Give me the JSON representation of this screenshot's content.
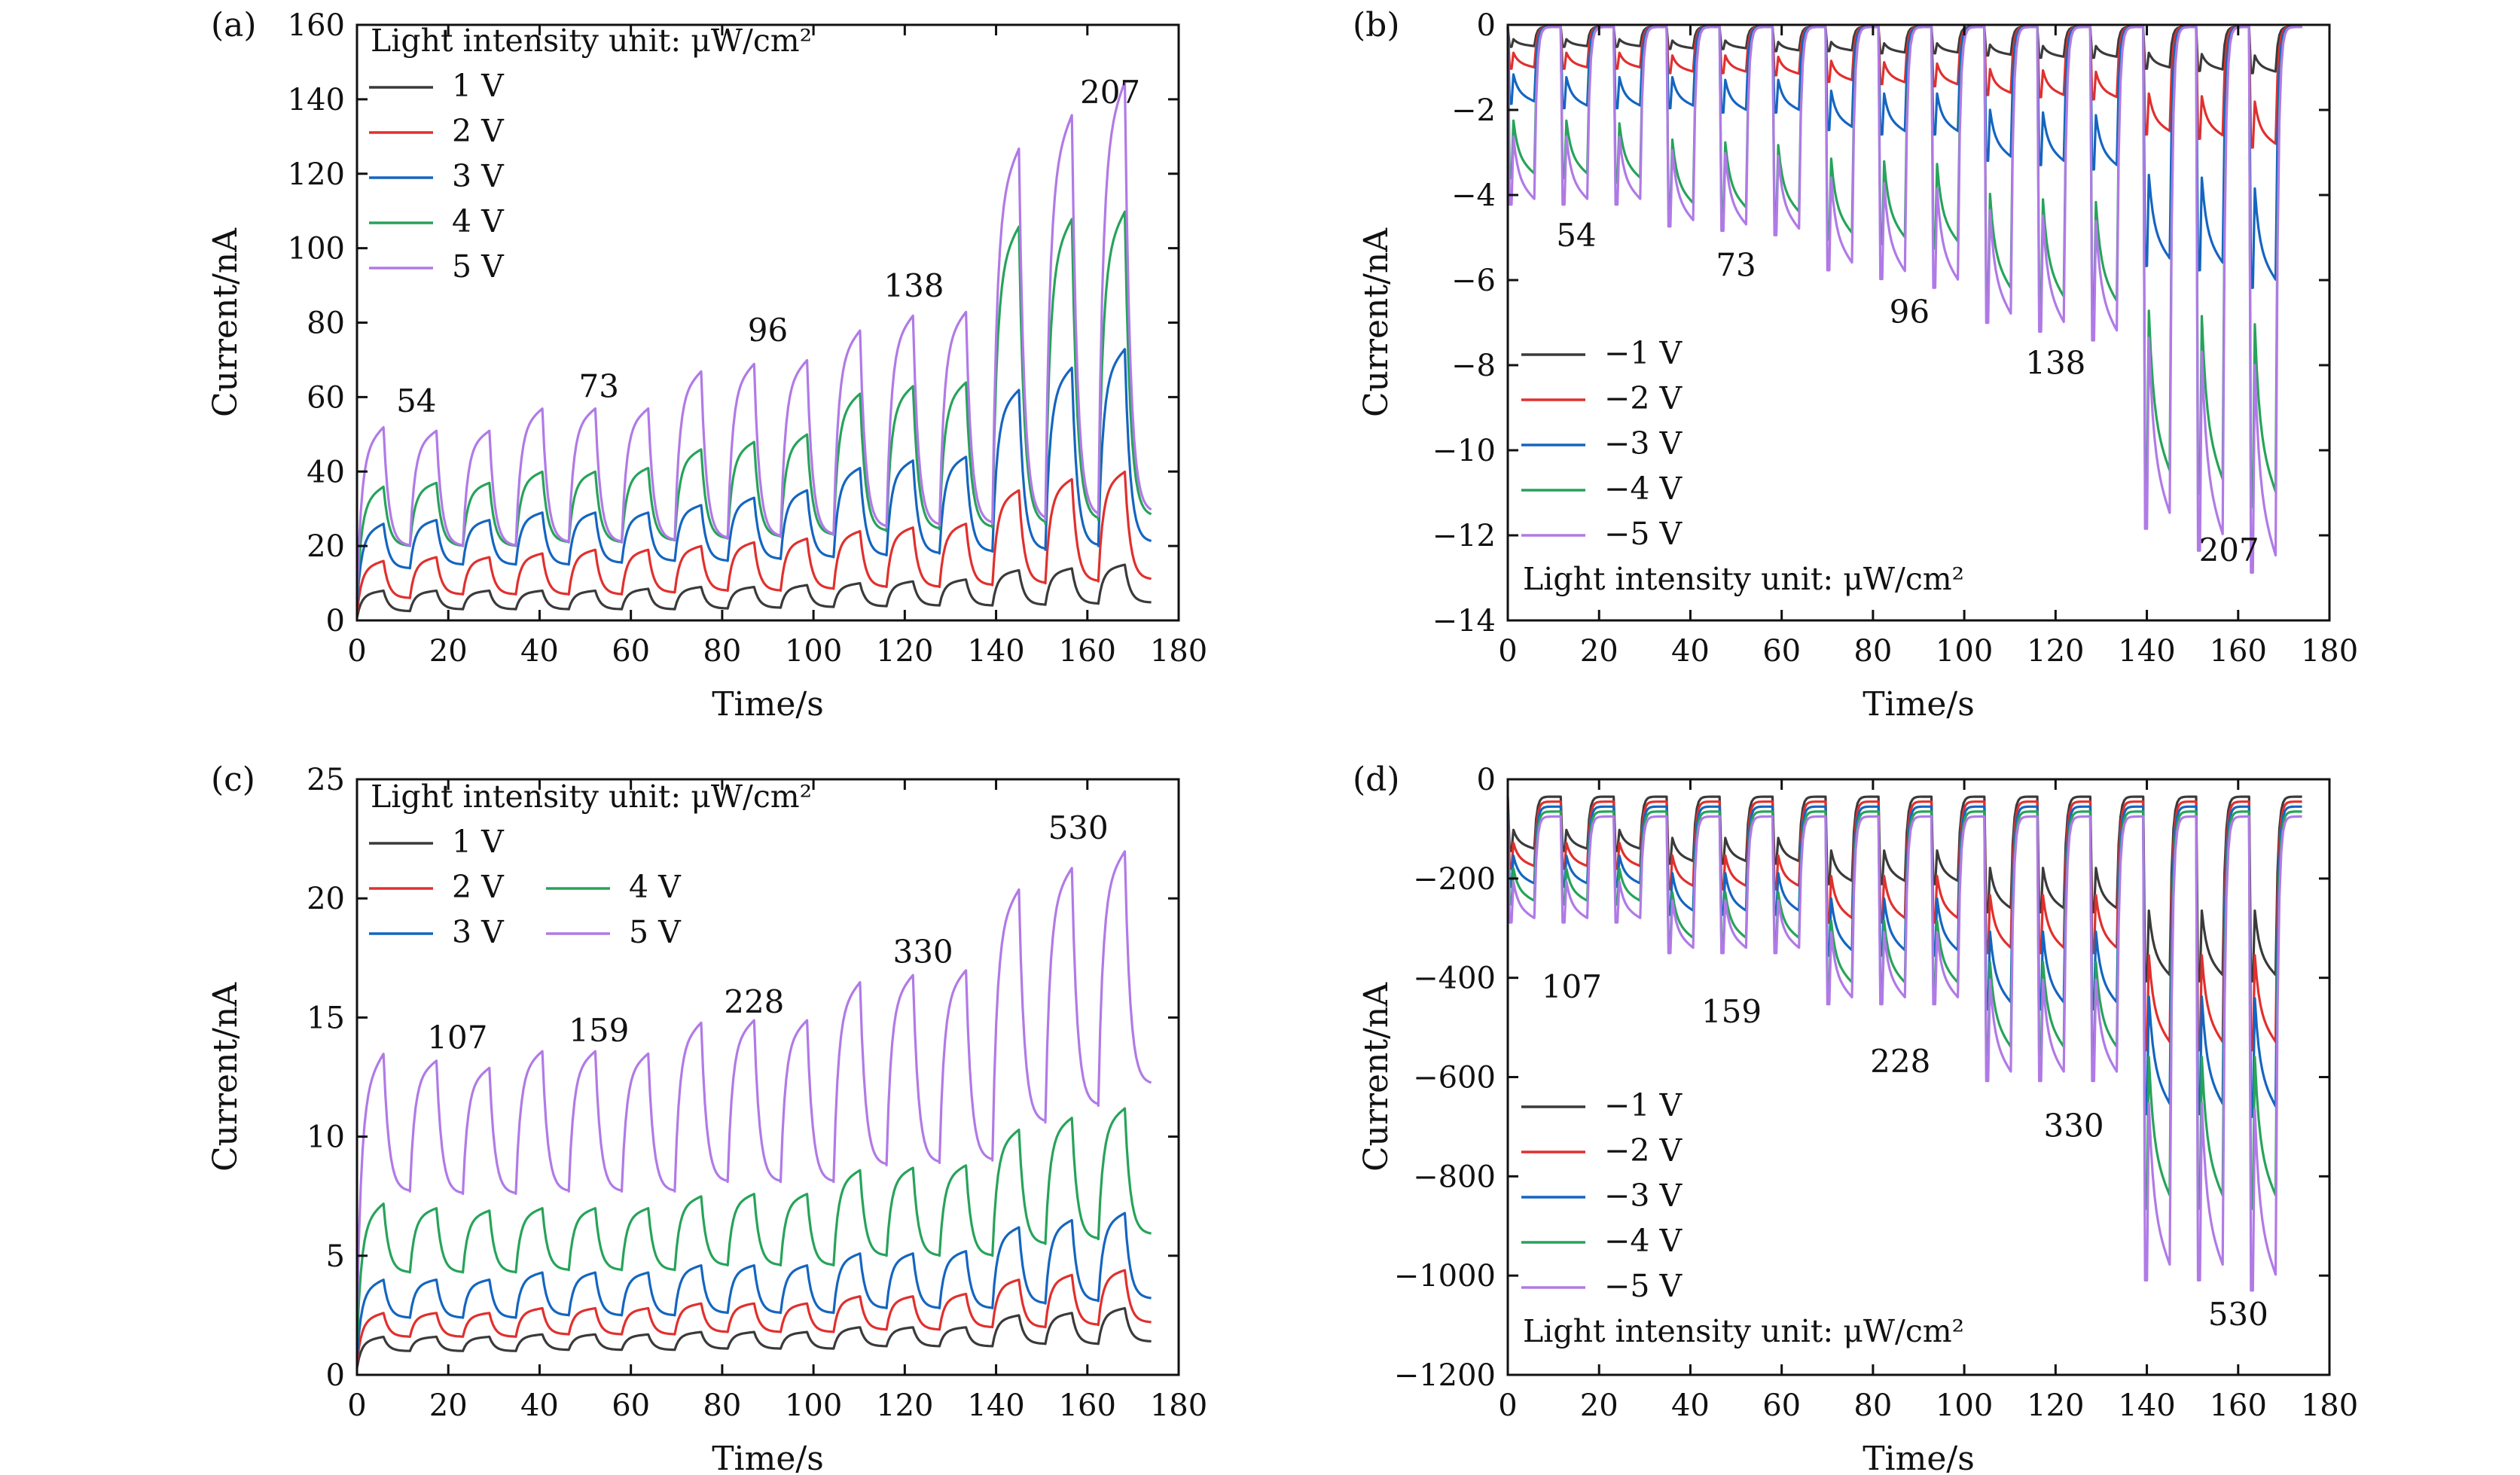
{
  "figure": {
    "legend_line_color_note": "",
    "colors": {
      "1": "#3a3a3a",
      "2": "#e0302e",
      "3": "#1565c0",
      "4": "#27a35a",
      "5": "#b07ae6",
      "axis": "#111111"
    }
  },
  "chart_data": [
    {
      "panel": "(a)",
      "type": "line",
      "xlabel": "Time/s",
      "ylabel": "Current/nA",
      "xlim": [
        0,
        180
      ],
      "ylim": [
        0,
        160
      ],
      "xticks": [
        "0",
        "20",
        "40",
        "60",
        "80",
        "100",
        "120",
        "140",
        "160",
        "180"
      ],
      "yticks": [
        "0",
        "20",
        "40",
        "60",
        "80",
        "100",
        "120",
        "140",
        "160"
      ],
      "legend_title": "Light intensity unit: μW/cm²",
      "legend_placement": "top-left",
      "series": [
        {
          "name": "1 V",
          "color_key": "1",
          "peaks": [
            8,
            8,
            8,
            8,
            8,
            8.5,
            9,
            9,
            9.5,
            10,
            10.5,
            11,
            13.5,
            14,
            15
          ],
          "baselines": [
            2.5,
            3,
            3,
            3,
            3,
            3,
            3.2,
            3.4,
            3.6,
            3.8,
            4,
            4,
            4.2,
            4.5,
            4.8
          ]
        },
        {
          "name": "2 V",
          "color_key": "2",
          "peaks": [
            16,
            17,
            17,
            18,
            19,
            19,
            20,
            21,
            22,
            24,
            25,
            26,
            35,
            38,
            40
          ],
          "baselines": [
            6,
            7,
            7,
            7,
            7,
            7.5,
            8,
            8,
            8.5,
            9,
            9,
            9.5,
            10,
            10.5,
            11
          ]
        },
        {
          "name": "3 V",
          "color_key": "3",
          "peaks": [
            26,
            27,
            27,
            29,
            29,
            29,
            31,
            33,
            35,
            41,
            43,
            44,
            62,
            68,
            73
          ],
          "baselines": [
            14,
            15,
            15,
            15,
            15.5,
            16,
            16,
            16.5,
            17,
            17.5,
            18,
            18.5,
            19,
            20,
            21
          ]
        },
        {
          "name": "4 V",
          "color_key": "4",
          "peaks": [
            36,
            37,
            37,
            40,
            40,
            41,
            46,
            48,
            50,
            61,
            63,
            64,
            106,
            108,
            110
          ],
          "baselines": [
            20,
            20,
            20,
            21,
            21,
            21.5,
            22,
            22.5,
            23,
            24,
            24.5,
            25,
            26,
            27,
            28
          ]
        },
        {
          "name": "5 V",
          "color_key": "5",
          "peaks": [
            52,
            51,
            51,
            57,
            57,
            57,
            67,
            69,
            70,
            78,
            82,
            83,
            127,
            136,
            145
          ],
          "baselines": [
            20,
            20,
            20,
            21,
            21,
            21.5,
            22,
            22.5,
            23,
            25,
            25.5,
            26,
            27,
            28,
            29
          ]
        }
      ],
      "annotations": [
        {
          "text": "54",
          "x": 13,
          "y": 56
        },
        {
          "text": "73",
          "x": 53,
          "y": 60
        },
        {
          "text": "96",
          "x": 90,
          "y": 75
        },
        {
          "text": "138",
          "x": 122,
          "y": 87
        },
        {
          "text": "207",
          "x": 165,
          "y": 139
        }
      ]
    },
    {
      "panel": "(b)",
      "type": "line",
      "xlabel": "Time/s",
      "ylabel": "Current/nA",
      "xlim": [
        0,
        180
      ],
      "ylim": [
        -14,
        0
      ],
      "xticks": [
        "0",
        "20",
        "40",
        "60",
        "80",
        "100",
        "120",
        "140",
        "160",
        "180"
      ],
      "yticks": [
        "−14",
        "−12",
        "−10",
        "−8",
        "−6",
        "−4",
        "−2",
        "0"
      ],
      "legend_title": "Light intensity unit: μW/cm²",
      "legend_placement": "bottom-left",
      "series": [
        {
          "name": "−1 V",
          "color_key": "1",
          "peaks": [
            -0.5,
            -0.5,
            -0.5,
            -0.55,
            -0.55,
            -0.6,
            -0.6,
            -0.65,
            -0.65,
            -0.7,
            -0.75,
            -0.75,
            -1.0,
            -1.05,
            -1.1
          ],
          "baselines": [
            -0.05,
            -0.05,
            -0.05,
            -0.05,
            -0.05,
            -0.05,
            -0.05,
            -0.05,
            -0.05,
            -0.05,
            -0.05,
            -0.05,
            -0.05,
            -0.05,
            -0.05
          ]
        },
        {
          "name": "−2 V",
          "color_key": "2",
          "peaks": [
            -1.0,
            -1.0,
            -1.0,
            -1.1,
            -1.1,
            -1.15,
            -1.3,
            -1.35,
            -1.4,
            -1.6,
            -1.65,
            -1.7,
            -2.5,
            -2.6,
            -2.8
          ],
          "baselines": [
            -0.05,
            -0.05,
            -0.05,
            -0.05,
            -0.05,
            -0.05,
            -0.05,
            -0.05,
            -0.05,
            -0.05,
            -0.05,
            -0.05,
            -0.05,
            -0.05,
            -0.05
          ]
        },
        {
          "name": "−3 V",
          "color_key": "3",
          "peaks": [
            -1.8,
            -1.9,
            -1.9,
            -1.9,
            -2.0,
            -2.0,
            -2.4,
            -2.5,
            -2.5,
            -3.1,
            -3.2,
            -3.3,
            -5.5,
            -5.6,
            -6.0
          ],
          "baselines": [
            -0.05,
            -0.05,
            -0.05,
            -0.05,
            -0.05,
            -0.05,
            -0.05,
            -0.05,
            -0.05,
            -0.05,
            -0.05,
            -0.05,
            -0.05,
            -0.05,
            -0.05
          ]
        },
        {
          "name": "−4 V",
          "color_key": "4",
          "peaks": [
            -3.5,
            -3.5,
            -3.6,
            -4.2,
            -4.3,
            -4.4,
            -4.9,
            -5.0,
            -5.1,
            -6.2,
            -6.4,
            -6.5,
            -10.5,
            -10.7,
            -11.0
          ],
          "baselines": [
            -0.05,
            -0.05,
            -0.05,
            -0.05,
            -0.05,
            -0.05,
            -0.05,
            -0.05,
            -0.05,
            -0.05,
            -0.05,
            -0.05,
            -0.05,
            -0.05,
            -0.05
          ]
        },
        {
          "name": "−5 V",
          "color_key": "5",
          "peaks": [
            -4.1,
            -4.1,
            -4.1,
            -4.6,
            -4.7,
            -4.8,
            -5.6,
            -5.8,
            -6.0,
            -6.8,
            -7.0,
            -7.2,
            -11.5,
            -12.0,
            -12.5
          ],
          "baselines": [
            -0.05,
            -0.05,
            -0.05,
            -0.05,
            -0.05,
            -0.05,
            -0.05,
            -0.05,
            -0.05,
            -0.05,
            -0.05,
            -0.05,
            -0.05,
            -0.05,
            -0.05
          ]
        }
      ],
      "annotations": [
        {
          "text": "54",
          "x": 15,
          "y": -5.2
        },
        {
          "text": "73",
          "x": 50,
          "y": -5.9
        },
        {
          "text": "96",
          "x": 88,
          "y": -7.0
        },
        {
          "text": "138",
          "x": 120,
          "y": -8.2
        },
        {
          "text": "207",
          "x": 158,
          "y": -12.6
        }
      ]
    },
    {
      "panel": "(c)",
      "type": "line",
      "xlabel": "Time/s",
      "ylabel": "Current/nA",
      "xlim": [
        0,
        180
      ],
      "ylim": [
        0,
        25
      ],
      "xticks": [
        "0",
        "20",
        "40",
        "60",
        "80",
        "100",
        "120",
        "140",
        "160",
        "180"
      ],
      "yticks": [
        "0",
        "5",
        "10",
        "15",
        "20",
        "25"
      ],
      "legend_title": "Light intensity unit: μW/cm²",
      "legend_placement": "top-left",
      "series": [
        {
          "name": "1 V",
          "color_key": "1",
          "peaks": [
            1.6,
            1.6,
            1.6,
            1.7,
            1.7,
            1.7,
            1.8,
            1.8,
            1.8,
            2.0,
            2.0,
            2.0,
            2.5,
            2.6,
            2.8
          ],
          "baselines": [
            1.0,
            1.0,
            1.0,
            1.05,
            1.05,
            1.05,
            1.1,
            1.1,
            1.1,
            1.2,
            1.2,
            1.2,
            1.3,
            1.3,
            1.4
          ]
        },
        {
          "name": "2 V",
          "color_key": "2",
          "peaks": [
            2.6,
            2.6,
            2.6,
            2.8,
            2.8,
            2.8,
            3.0,
            3.0,
            3.0,
            3.3,
            3.3,
            3.4,
            4.0,
            4.2,
            4.4
          ],
          "baselines": [
            1.6,
            1.6,
            1.6,
            1.7,
            1.7,
            1.7,
            1.8,
            1.8,
            1.8,
            1.9,
            1.9,
            2.0,
            2.0,
            2.1,
            2.2
          ]
        },
        {
          "name": "3 V",
          "color_key": "3",
          "peaks": [
            4.0,
            4.0,
            4.0,
            4.3,
            4.3,
            4.3,
            4.6,
            4.6,
            4.6,
            5.1,
            5.1,
            5.2,
            6.2,
            6.5,
            6.8
          ],
          "baselines": [
            2.4,
            2.4,
            2.4,
            2.5,
            2.5,
            2.5,
            2.6,
            2.6,
            2.6,
            2.8,
            2.8,
            2.8,
            3.0,
            3.1,
            3.2
          ]
        },
        {
          "name": "4 V",
          "color_key": "4",
          "peaks": [
            7.2,
            7.0,
            6.9,
            7.0,
            7.0,
            7.0,
            7.5,
            7.6,
            7.6,
            8.6,
            8.7,
            8.8,
            10.3,
            10.8,
            11.2
          ],
          "baselines": [
            4.3,
            4.3,
            4.3,
            4.4,
            4.4,
            4.4,
            4.6,
            4.6,
            4.6,
            5.0,
            5.0,
            5.0,
            5.5,
            5.7,
            5.9
          ]
        },
        {
          "name": "5 V",
          "color_key": "5",
          "peaks": [
            13.5,
            13.2,
            12.9,
            13.6,
            13.6,
            13.5,
            14.8,
            14.9,
            14.9,
            16.5,
            16.8,
            17.0,
            20.4,
            21.3,
            22.0
          ],
          "baselines": [
            7.7,
            7.6,
            7.6,
            7.7,
            7.7,
            7.7,
            8.1,
            8.1,
            8.1,
            8.8,
            8.9,
            9.0,
            10.6,
            11.3,
            12.2
          ]
        }
      ],
      "annotations": [
        {
          "text": "107",
          "x": 22,
          "y": 13.7
        },
        {
          "text": "159",
          "x": 53,
          "y": 14.0
        },
        {
          "text": "228",
          "x": 87,
          "y": 15.2
        },
        {
          "text": "330",
          "x": 124,
          "y": 17.3
        },
        {
          "text": "530",
          "x": 158,
          "y": 22.5
        }
      ]
    },
    {
      "panel": "(d)",
      "type": "line",
      "xlabel": "Time/s",
      "ylabel": "Current/nA",
      "xlim": [
        0,
        180
      ],
      "ylim": [
        -1200,
        0
      ],
      "xticks": [
        "0",
        "20",
        "40",
        "60",
        "80",
        "100",
        "120",
        "140",
        "160",
        "180"
      ],
      "yticks": [
        "−1200",
        "−1000",
        "−800",
        "−600",
        "−400",
        "−200",
        "0"
      ],
      "legend_title": "Light intensity unit: μW/cm²",
      "legend_placement": "bottom-left",
      "series": [
        {
          "name": "−1 V",
          "color_key": "1",
          "peaks": [
            -140,
            -140,
            -140,
            -165,
            -165,
            -165,
            -205,
            -205,
            -205,
            -260,
            -260,
            -260,
            -395,
            -395,
            -395
          ],
          "baselines": [
            -35,
            -35,
            -35,
            -35,
            -35,
            -35,
            -35,
            -35,
            -35,
            -35,
            -35,
            -35,
            -35,
            -35,
            -35
          ]
        },
        {
          "name": "−2 V",
          "color_key": "2",
          "peaks": [
            -175,
            -175,
            -175,
            -215,
            -215,
            -215,
            -280,
            -280,
            -280,
            -340,
            -340,
            -340,
            -530,
            -530,
            -530
          ],
          "baselines": [
            -45,
            -45,
            -45,
            -45,
            -45,
            -45,
            -45,
            -45,
            -45,
            -45,
            -45,
            -45,
            -45,
            -45,
            -45
          ]
        },
        {
          "name": "−3 V",
          "color_key": "3",
          "peaks": [
            -210,
            -210,
            -210,
            -265,
            -265,
            -265,
            -345,
            -345,
            -345,
            -450,
            -450,
            -450,
            -655,
            -655,
            -660
          ],
          "baselines": [
            -55,
            -55,
            -55,
            -55,
            -55,
            -55,
            -55,
            -55,
            -55,
            -55,
            -55,
            -55,
            -55,
            -55,
            -55
          ]
        },
        {
          "name": "−4 V",
          "color_key": "4",
          "peaks": [
            -245,
            -245,
            -245,
            -320,
            -320,
            -320,
            -410,
            -410,
            -410,
            -540,
            -540,
            -540,
            -840,
            -840,
            -840
          ],
          "baselines": [
            -65,
            -65,
            -65,
            -65,
            -65,
            -65,
            -65,
            -65,
            -65,
            -65,
            -65,
            -65,
            -65,
            -65,
            -65
          ]
        },
        {
          "name": "−5 V",
          "color_key": "5",
          "peaks": [
            -280,
            -280,
            -280,
            -340,
            -340,
            -340,
            -440,
            -440,
            -440,
            -590,
            -590,
            -590,
            -980,
            -980,
            -1000
          ],
          "baselines": [
            -75,
            -75,
            -75,
            -75,
            -75,
            -75,
            -75,
            -75,
            -75,
            -75,
            -75,
            -75,
            -75,
            -75,
            -75
          ]
        }
      ],
      "annotations": [
        {
          "text": "107",
          "x": 14,
          "y": -440
        },
        {
          "text": "159",
          "x": 49,
          "y": -490
        },
        {
          "text": "228",
          "x": 86,
          "y": -590
        },
        {
          "text": "330",
          "x": 124,
          "y": -720
        },
        {
          "text": "530",
          "x": 160,
          "y": -1100
        }
      ]
    }
  ]
}
